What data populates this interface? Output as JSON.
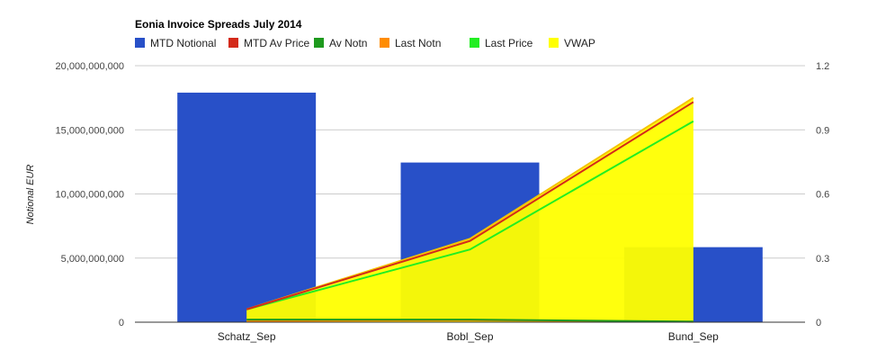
{
  "chart_data": {
    "type": "bar",
    "title": "Eonia Invoice Spreads July 2014",
    "xlabel": "",
    "ylabel": "Notional EUR",
    "categories": [
      "Schatz_Sep",
      "Bobl_Sep",
      "Bund_Sep"
    ],
    "ylim": [
      0,
      20000000000
    ],
    "y2lim": [
      0,
      1.2
    ],
    "y_ticks": [
      "0",
      "5,000,000,000",
      "10,000,000,000",
      "15,000,000,000",
      "20,000,000,000"
    ],
    "y2_ticks": [
      "0",
      "0.3",
      "0.6",
      "0.9",
      "1.2"
    ],
    "grid": true,
    "legend_position": "top",
    "series": [
      {
        "name": "MTD Notional",
        "type": "bar",
        "axis": "left",
        "color": "#2850c8",
        "values": [
          17900000000,
          12450000000,
          5850000000
        ]
      },
      {
        "name": "MTD Av Price",
        "type": "line",
        "axis": "right",
        "color": "#d42a1a",
        "values": [
          0.06,
          0.38,
          1.03
        ]
      },
      {
        "name": "Av Notn",
        "type": "line",
        "axis": "left",
        "color": "#1e9a1e",
        "values": [
          200000000,
          200000000,
          50000000
        ]
      },
      {
        "name": "Last Notn",
        "type": "line",
        "axis": "left",
        "color": "#ff8c00",
        "values": [
          100000000,
          150000000,
          30000000
        ]
      },
      {
        "name": "Last Price",
        "type": "line",
        "axis": "right",
        "color": "#22ee22",
        "values": [
          0.06,
          0.34,
          0.94
        ]
      },
      {
        "name": "VWAP",
        "type": "area",
        "axis": "right",
        "color": "#ffff00",
        "values": [
          0.06,
          0.39,
          1.05
        ]
      }
    ]
  }
}
